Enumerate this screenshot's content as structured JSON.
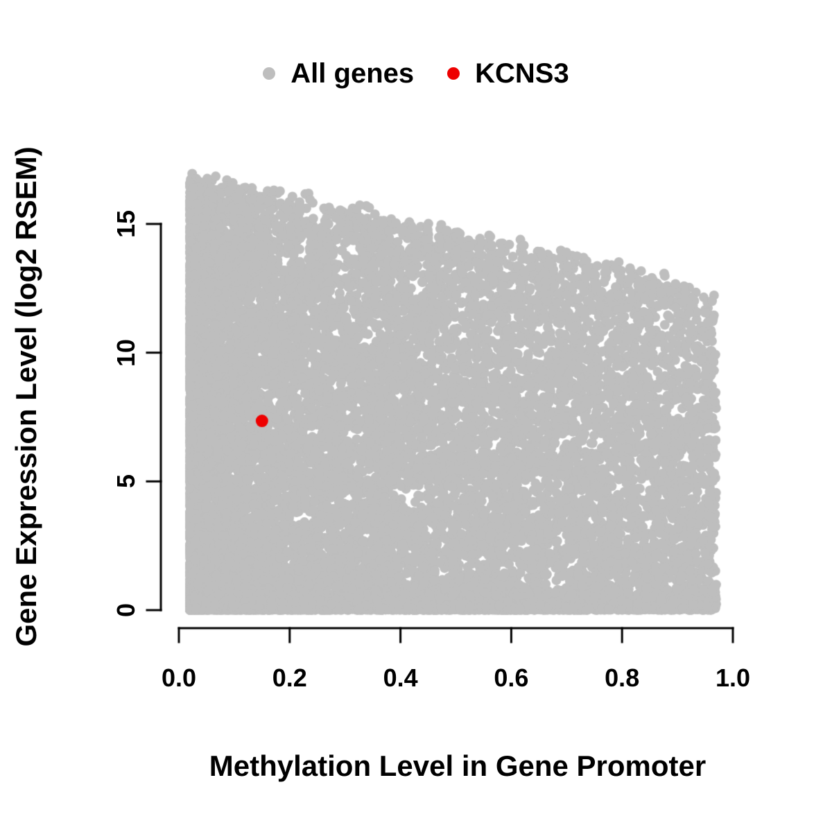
{
  "chart_data": {
    "type": "scatter",
    "title": "",
    "xlabel": "Methylation Level in Gene Promoter",
    "ylabel": "Gene Expression Level (log2 RSEM)",
    "xlim": [
      0.0,
      1.0
    ],
    "ylim": [
      0.0,
      16.8
    ],
    "x_ticks": [
      0.0,
      0.2,
      0.4,
      0.6,
      0.8,
      1.0
    ],
    "x_tick_labels": [
      "0.0",
      "0.2",
      "0.4",
      "0.6",
      "0.8",
      "1.0"
    ],
    "y_ticks": [
      0,
      5,
      10,
      15
    ],
    "y_tick_labels": [
      "0",
      "5",
      "10",
      "15"
    ],
    "grid": false,
    "axis_color": "#000000",
    "legend_position": "top-center",
    "legend": {
      "entries": [
        {
          "label": "All genes",
          "color": "#bebebe"
        },
        {
          "label": "KCNS3",
          "color": "#ee0000"
        }
      ]
    },
    "series": [
      {
        "name": "All genes",
        "color": "#bebebe",
        "marker": "filled-circle",
        "marker_radius_px": 7,
        "point_cloud": {
          "description": "Dense gray cloud of all genes; expression spans 0-16.7 at low methylation and its upper envelope declines to about 12 at methylation near 1; bottom edge near y=0 is solid across the full x range",
          "n_points": 16000,
          "seed": 1234,
          "x_range": [
            0.02,
            0.97
          ],
          "x_left_skew_exponent": 2.2,
          "x_uniform_fraction": 0.32,
          "upper_envelope": {
            "intercept": 16.7,
            "linear": -3.4,
            "quadratic": -1.2,
            "noise": 0.8
          },
          "bottom_strip_fraction": 0.2,
          "bottom_strip_max_y": 0.9,
          "y_skew_exponent": 1.15
        }
      },
      {
        "name": "KCNS3",
        "color": "#ee0000",
        "marker": "filled-circle",
        "marker_radius_px": 9,
        "points": [
          [
            0.15,
            7.35
          ]
        ]
      }
    ]
  }
}
